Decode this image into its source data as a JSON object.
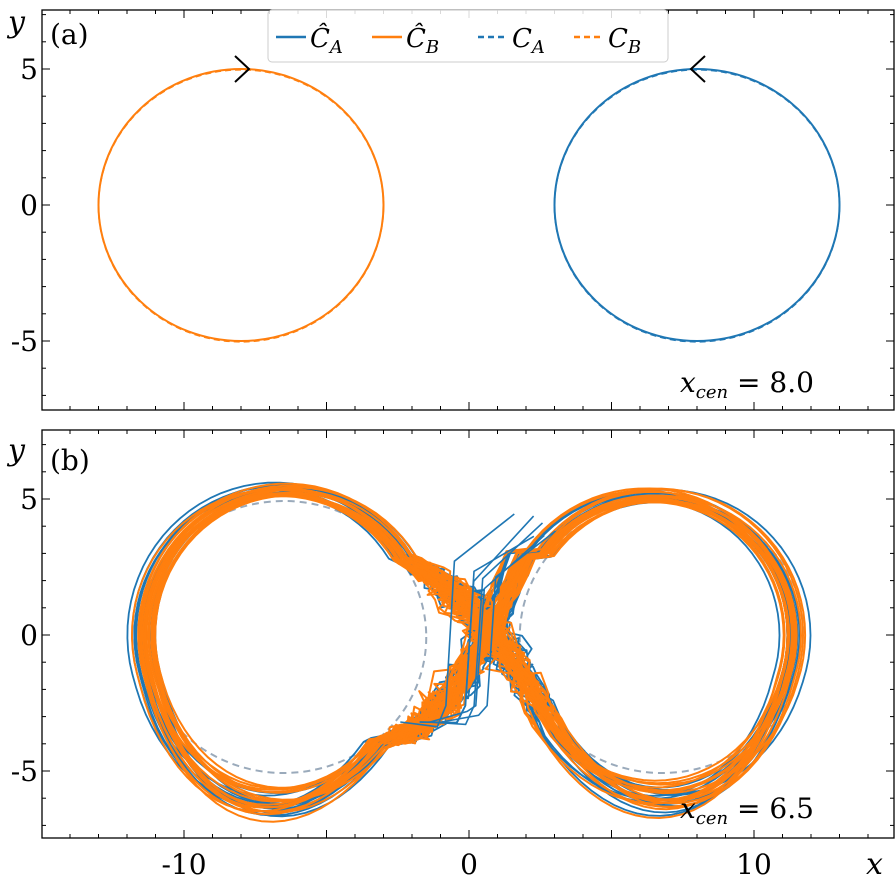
{
  "colors": {
    "A": "#1f77b4",
    "B": "#ff7f0e",
    "ghost": "#9aaabb"
  },
  "legend": [
    {
      "symbol": "Ĉ",
      "sub": "A",
      "color": "#1f77b4",
      "style": "solid"
    },
    {
      "symbol": "Ĉ",
      "sub": "B",
      "color": "#ff7f0e",
      "style": "solid"
    },
    {
      "symbol": "C",
      "sub": "A",
      "color": "#1f77b4",
      "style": "dashed"
    },
    {
      "symbol": "C",
      "sub": "B",
      "color": "#ff7f0e",
      "style": "dashed"
    }
  ],
  "chart_data": [
    {
      "type": "line",
      "panel_label": "(a)",
      "annotation": {
        "lhs": "x",
        "sub": "cen",
        "rhs": " = 8.0"
      },
      "xlabel": "",
      "ylabel": "y",
      "xlim": [
        -15,
        15
      ],
      "ylim": [
        -7.5,
        7.2
      ],
      "yticks": [
        -5,
        0,
        5
      ],
      "ytick_labels": [
        "-5",
        "0",
        "5"
      ],
      "grid": false,
      "legend_position": "top-center",
      "series": [
        {
          "key": "B_hat",
          "center": [
            -8,
            0
          ],
          "radius": 5,
          "style": "solid",
          "color": "#ff7f0e"
        },
        {
          "key": "B",
          "center": [
            -8,
            0
          ],
          "radius": 5,
          "style": "dashed",
          "color": "#ff7f0e"
        },
        {
          "key": "A_hat",
          "center": [
            8,
            0
          ],
          "radius": 5,
          "style": "solid",
          "color": "#1f77b4"
        },
        {
          "key": "A",
          "center": [
            8,
            0
          ],
          "radius": 5,
          "style": "dashed",
          "color": "#1f77b4"
        }
      ],
      "direction_markers": [
        [
          -8,
          5
        ],
        [
          8,
          5
        ]
      ]
    },
    {
      "type": "line",
      "panel_label": "(b)",
      "annotation": {
        "lhs": "x",
        "sub": "cen",
        "rhs": " = 6.5"
      },
      "xlabel": "x",
      "ylabel": "y",
      "xlim": [
        -15,
        15
      ],
      "ylim": [
        -7.5,
        7.2
      ],
      "xticks": [
        -10,
        0,
        10
      ],
      "xtick_labels": [
        "-10",
        "0",
        "10"
      ],
      "yticks": [
        -5,
        0,
        5
      ],
      "ytick_labels": [
        "-5",
        "0",
        "5"
      ],
      "grid": false,
      "description_centers": [
        [
          -6.5,
          0
        ],
        [
          6.5,
          0
        ]
      ],
      "approx_radius": 5
    }
  ]
}
